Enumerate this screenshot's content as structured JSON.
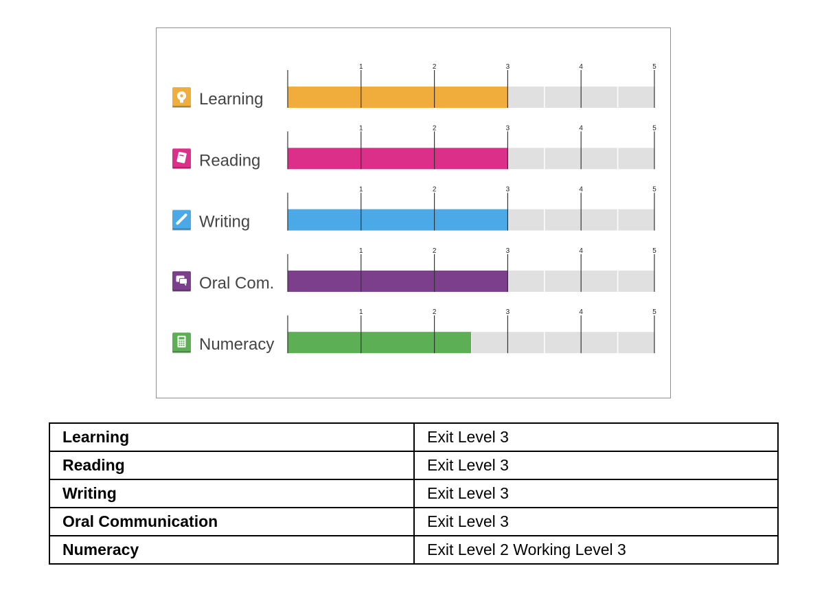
{
  "chart_data": {
    "type": "bar",
    "orientation": "horizontal",
    "categories": [
      "Learning",
      "Reading",
      "Writing",
      "Oral Com.",
      "Numeracy"
    ],
    "values": [
      3,
      3,
      3,
      3,
      2.5
    ],
    "colors": [
      "#f0ad3c",
      "#dc2f89",
      "#4ba9e7",
      "#7b3f8c",
      "#5caf55"
    ],
    "icons": [
      "lightbulb-head-icon",
      "book-icon",
      "pencil-icon",
      "speech-bubbles-icon",
      "calculator-icon"
    ],
    "track_color": "#e0e0e0",
    "xlim": [
      0,
      5
    ],
    "ticks": [
      "1",
      "2",
      "3",
      "4",
      "5"
    ],
    "title": "",
    "xlabel": "",
    "ylabel": "",
    "grid": false,
    "legend": "none"
  },
  "table": {
    "rows": [
      {
        "skill": "Learning",
        "level": "Exit Level 3"
      },
      {
        "skill": "Reading",
        "level": "Exit Level 3"
      },
      {
        "skill": "Writing",
        "level": "Exit Level 3"
      },
      {
        "skill": "Oral Communication",
        "level": "Exit Level 3"
      },
      {
        "skill": "Numeracy",
        "level": "Exit Level 2 Working Level 3"
      }
    ]
  }
}
